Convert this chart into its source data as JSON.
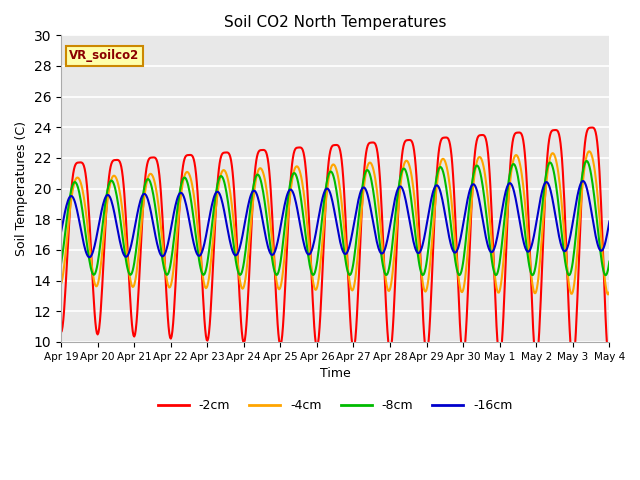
{
  "title": "Soil CO2 North Temperatures",
  "ylabel": "Soil Temperatures (C)",
  "xlabel": "Time",
  "ylim": [
    10,
    30
  ],
  "label_text": "VR_soilco2",
  "colors": {
    "-2cm": "#ff0000",
    "-4cm": "#ffa500",
    "-8cm": "#00bb00",
    "-16cm": "#0000cc"
  },
  "legend_labels": [
    "-2cm",
    "-4cm",
    "-8cm",
    "-16cm"
  ],
  "xtick_labels": [
    "Apr 19",
    "Apr 20",
    "Apr 21",
    "Apr 22",
    "Apr 23",
    "Apr 24",
    "Apr 25",
    "Apr 26",
    "Apr 27",
    "Apr 28",
    "Apr 29",
    "Apr 30",
    "May 1",
    "May 2",
    "May 3",
    "May 4"
  ],
  "background_color": "#ffffff",
  "plot_bg": "#e8e8e8",
  "grid_color": "#ffffff",
  "yticks": [
    10,
    12,
    14,
    16,
    18,
    20,
    22,
    24,
    26,
    28,
    30
  ],
  "linewidth": 1.5,
  "n_points": 720
}
